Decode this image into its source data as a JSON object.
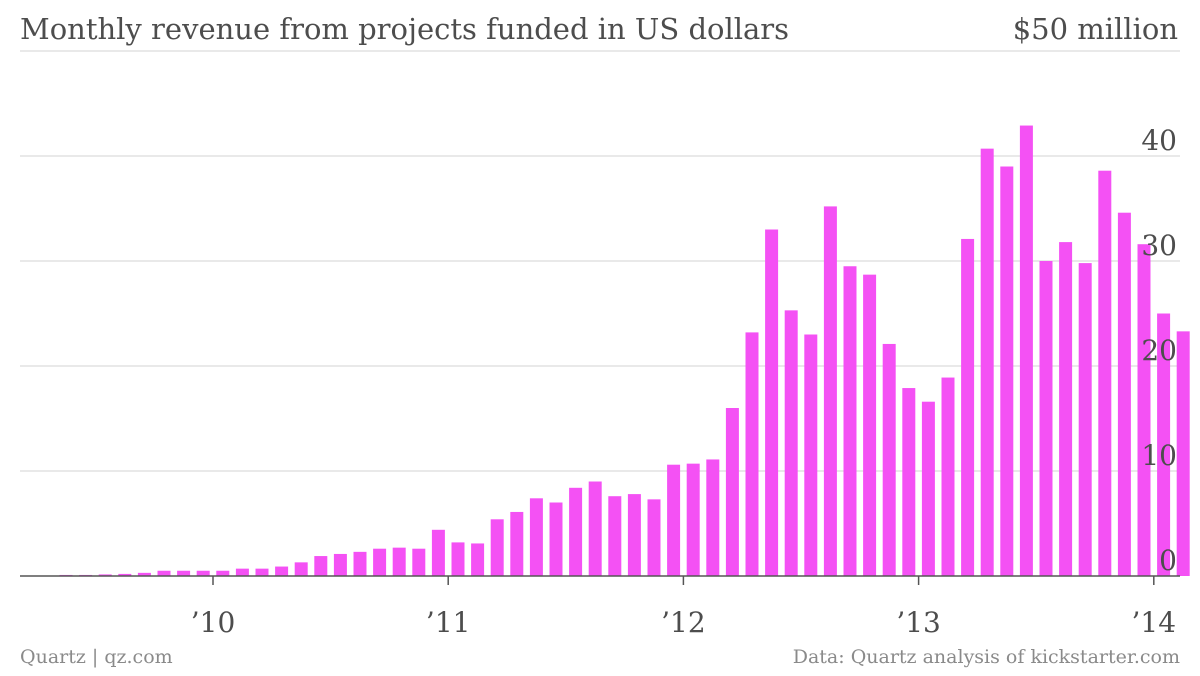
{
  "header": {
    "title": "Monthly revenue from projects funded in US dollars",
    "top_value_label": "$50 million"
  },
  "footer": {
    "credit": "Quartz | qz.com",
    "source": "Data: Quartz analysis of kickstarter.com"
  },
  "colors": {
    "bar": "#f451f4",
    "grid": "#dcdcdc",
    "axis": "#555555",
    "text": "#4d4d4d"
  },
  "chart_data": {
    "type": "bar",
    "title": "Monthly revenue from projects funded in US dollars",
    "xlabel": "",
    "ylabel": "",
    "ylim": [
      0,
      50
    ],
    "y_unit_label": "$50 million",
    "y_ticks": [
      0,
      10,
      20,
      30,
      40
    ],
    "grid": true,
    "x_start": "2009-05",
    "x_ticks": [
      {
        "label": "’10",
        "month": "2010-01"
      },
      {
        "label": "’11",
        "month": "2011-01"
      },
      {
        "label": "’12",
        "month": "2012-01"
      },
      {
        "label": "’13",
        "month": "2013-01"
      },
      {
        "label": "’14",
        "month": "2014-01"
      }
    ],
    "categories": [
      "2009-05",
      "2009-06",
      "2009-07",
      "2009-08",
      "2009-09",
      "2009-10",
      "2009-11",
      "2009-12",
      "2010-01",
      "2010-02",
      "2010-03",
      "2010-04",
      "2010-05",
      "2010-06",
      "2010-07",
      "2010-08",
      "2010-09",
      "2010-10",
      "2010-11",
      "2010-12",
      "2011-01",
      "2011-02",
      "2011-03",
      "2011-04",
      "2011-05",
      "2011-06",
      "2011-07",
      "2011-08",
      "2011-09",
      "2011-10",
      "2011-11",
      "2011-12",
      "2012-01",
      "2012-02",
      "2012-03",
      "2012-04",
      "2012-05",
      "2012-06",
      "2012-07",
      "2012-08",
      "2012-09",
      "2012-10",
      "2012-11",
      "2012-12",
      "2013-01",
      "2013-02",
      "2013-03",
      "2013-04",
      "2013-05",
      "2013-06",
      "2013-07",
      "2013-08",
      "2013-09",
      "2013-10",
      "2013-11",
      "2013-12",
      "2014-01",
      "2014-02"
    ],
    "values": [
      0.1,
      0.1,
      0.15,
      0.2,
      0.3,
      0.5,
      0.5,
      0.5,
      0.5,
      0.7,
      0.7,
      0.9,
      1.3,
      1.9,
      2.1,
      2.3,
      2.6,
      2.7,
      2.6,
      4.4,
      3.2,
      3.1,
      5.4,
      6.1,
      7.4,
      7.0,
      8.4,
      9.0,
      7.6,
      7.8,
      7.3,
      10.6,
      10.7,
      11.1,
      16.0,
      23.2,
      33.0,
      25.3,
      23.0,
      35.2,
      29.5,
      28.7,
      22.1,
      17.9,
      16.6,
      18.9,
      32.1,
      40.7,
      39.0,
      42.9,
      30.0,
      31.8,
      29.8,
      38.6,
      34.6,
      31.6,
      25.0,
      23.3
    ]
  }
}
